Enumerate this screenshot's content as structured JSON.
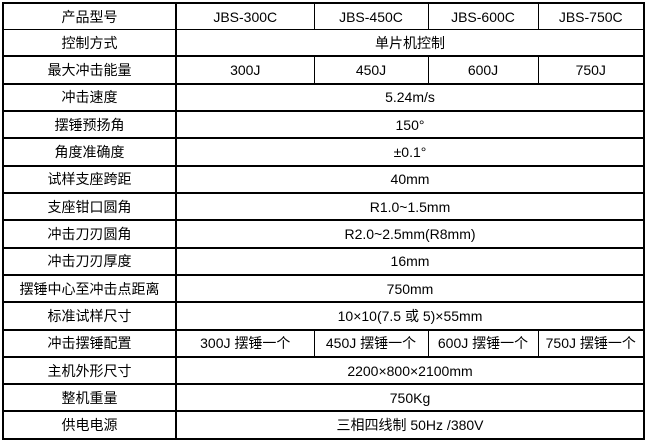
{
  "colors": {
    "border": "#000000",
    "text": "#000000",
    "background": "#ffffff"
  },
  "table": {
    "rows": [
      {
        "label": "产品型号",
        "values": [
          "JBS-300C",
          "JBS-450C",
          "JBS-600C",
          "JBS-750C"
        ]
      },
      {
        "label": "控制方式",
        "values": [
          "单片机控制"
        ]
      },
      {
        "label": "最大冲击能量",
        "values": [
          "300J",
          "450J",
          "600J",
          "750J"
        ]
      },
      {
        "label": "冲击速度",
        "values": [
          "5.24m/s"
        ]
      },
      {
        "label": "摆锤预扬角",
        "values": [
          "150°"
        ]
      },
      {
        "label": "角度准确度",
        "values": [
          "±0.1°"
        ]
      },
      {
        "label": "试样支座跨距",
        "values": [
          "40mm"
        ]
      },
      {
        "label": "支座钳口圆角",
        "values": [
          "R1.0~1.5mm"
        ]
      },
      {
        "label": "冲击刀刃圆角",
        "values": [
          "R2.0~2.5mm(R8mm)"
        ]
      },
      {
        "label": "冲击刀刃厚度",
        "values": [
          "16mm"
        ]
      },
      {
        "label": "摆锤中心至冲击点距离",
        "values": [
          "750mm"
        ]
      },
      {
        "label": "标准试样尺寸",
        "values": [
          "10×10(7.5 或 5)×55mm"
        ]
      },
      {
        "label": "冲击摆锤配置",
        "values": [
          "300J 摆锤一个",
          "450J 摆锤一个",
          "600J 摆锤一个",
          "750J 摆锤一个"
        ]
      },
      {
        "label": "主机外形尺寸",
        "values": [
          "2200×800×2100mm"
        ]
      },
      {
        "label": "整机重量",
        "values": [
          "750Kg"
        ]
      },
      {
        "label": "供电电源",
        "values": [
          "三相四线制 50Hz /380V"
        ]
      }
    ]
  }
}
